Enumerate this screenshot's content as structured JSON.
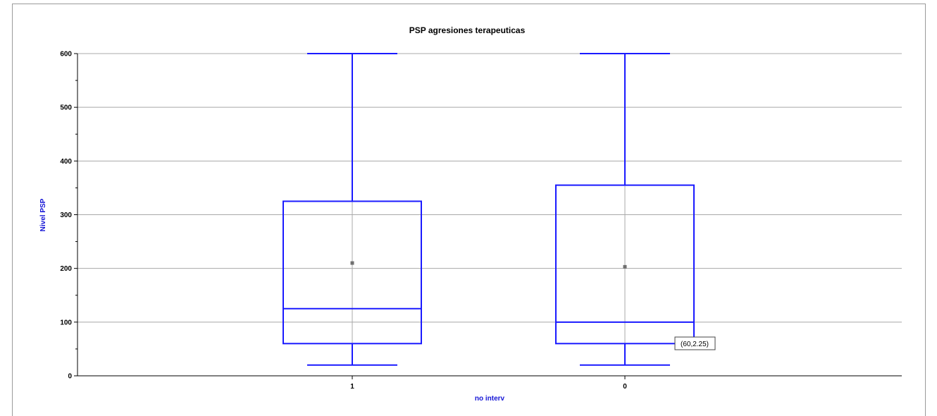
{
  "chart_data": {
    "type": "box",
    "title": "PSP agresiones terapeuticas",
    "xlabel": "no interv",
    "ylabel": "Nivel PSP",
    "ylim": [
      0,
      600
    ],
    "yticks": [
      0,
      100,
      200,
      300,
      400,
      500,
      600
    ],
    "grid": true,
    "categories": [
      "1",
      "0"
    ],
    "boxes": [
      {
        "category": "1",
        "min": 20,
        "q1": 60,
        "median": 125,
        "q3": 325,
        "max": 600,
        "mean": 210
      },
      {
        "category": "0",
        "min": 20,
        "q1": 60,
        "median": 100,
        "q3": 355,
        "max": 600,
        "mean": 203
      }
    ],
    "annotation": {
      "text": "(60,2.25)"
    },
    "colors": {
      "box": "#1a1aff",
      "grid": "#a8a8a8",
      "mean": "#707070",
      "axis_label": "#1515d6"
    }
  }
}
